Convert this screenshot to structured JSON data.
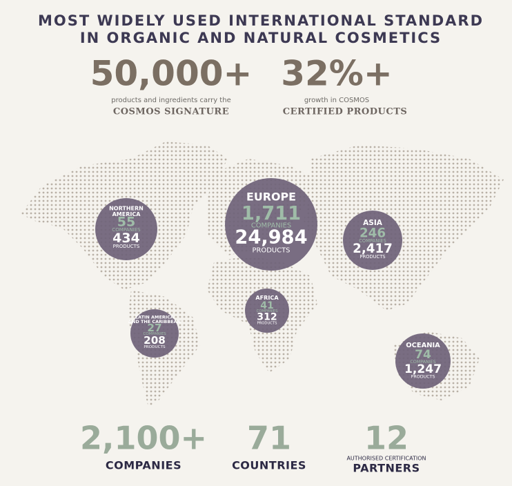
{
  "header": {
    "title_lines": [
      "MOST WIDELY USED INTERNATIONAL STANDARD",
      "IN ORGANIC AND NATURAL COSMETICS"
    ]
  },
  "stats": [
    {
      "value": "50,000+",
      "caption": "products and ingredients carry the",
      "label": "COSMOS SIGNATURE"
    },
    {
      "value": "32%+",
      "caption": "growth in COSMOS",
      "label": "CERTIFIED PRODUCTS"
    }
  ],
  "regions": [
    {
      "name_lines": [
        "NORTHERN",
        "AMERICA"
      ],
      "companies": "55",
      "companies_label": "COMPANIES",
      "products": "434",
      "products_label": "PRODUCTS"
    },
    {
      "name_lines": [
        "EUROPE"
      ],
      "companies": "1,711",
      "companies_label": "COMPANIES",
      "products": "24,984",
      "products_label": "PRODUCTS"
    },
    {
      "name_lines": [
        "ASIA"
      ],
      "companies": "246",
      "companies_label": "COMPANIES",
      "products": "2,417",
      "products_label": "PRODUCTS"
    },
    {
      "name_lines": [
        "AFRICA"
      ],
      "companies": "41",
      "companies_label": "COMPANIES",
      "products": "312",
      "products_label": "PRODUCTS"
    },
    {
      "name_lines": [
        "LATIN AMERICA",
        "AND THE CARIBBEAN"
      ],
      "companies": "27",
      "companies_label": "COMPANIES",
      "products": "208",
      "products_label": "PRODUCTS"
    },
    {
      "name_lines": [
        "OCEANIA"
      ],
      "companies": "74",
      "companies_label": "COMPANIES",
      "products": "1,247",
      "products_label": "PRODUCTS"
    }
  ],
  "totals": [
    {
      "value": "2,100+",
      "label": "COMPANIES"
    },
    {
      "value": "71",
      "label": "COUNTRIES"
    },
    {
      "value": "12",
      "caption": "AUTHORISED CERTIFICATION",
      "label": "PARTNERS"
    }
  ]
}
